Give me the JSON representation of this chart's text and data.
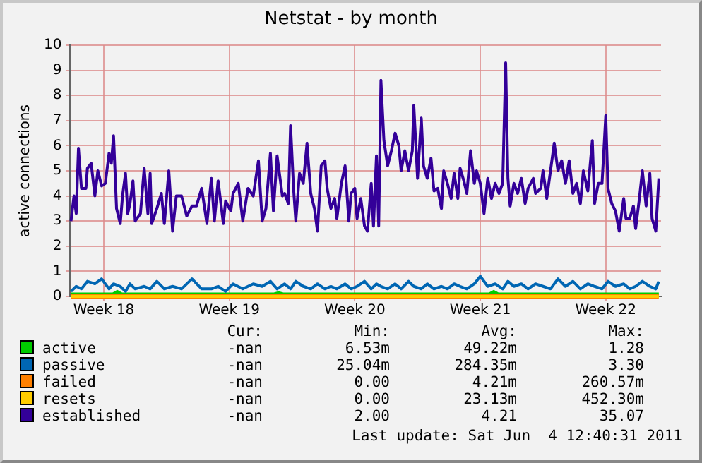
{
  "chart_data": {
    "type": "line",
    "title": "Netstat - by month",
    "ylabel": "active connections",
    "xlim": [
      "2011-05-02T15:00",
      "2011-06-04T14:00"
    ],
    "xticks": [
      {
        "value": "2011-05-04T12:00",
        "label": "Week 18"
      },
      {
        "value": "2011-05-11T12:00",
        "label": "Week 19"
      },
      {
        "value": "2011-05-18T12:00",
        "label": "Week 20"
      },
      {
        "value": "2011-05-25T12:00",
        "label": "Week 21"
      },
      {
        "value": "2011-06-01T12:00",
        "label": "Week 22"
      }
    ],
    "ylim": [
      0,
      10
    ],
    "yticks": [
      0,
      1,
      2,
      3,
      4,
      5,
      6,
      7,
      8,
      9,
      10
    ],
    "grid": true,
    "legend": "bottom",
    "marker": "none",
    "line_style": "solid",
    "series": [
      {
        "name": "active",
        "color": "#00cc00",
        "x": [
          "2011-05-02T16:00",
          "2011-05-05T00:00",
          "2011-05-05T06:00",
          "2011-05-05T12:00",
          "2011-05-14T00:00",
          "2011-05-14T06:00",
          "2011-05-14T12:00",
          "2011-05-26T00:00",
          "2011-05-26T06:00",
          "2011-05-26T12:00",
          "2011-06-04T11:00"
        ],
        "values": [
          0.1,
          0.1,
          0.2,
          0.1,
          0.1,
          0.15,
          0.1,
          0.1,
          0.2,
          0.1,
          0.1
        ]
      },
      {
        "name": "passive",
        "color": "#0066b3",
        "x": [
          "2011-05-02T16:00",
          "2011-05-02T23:00",
          "2011-05-03T06:00",
          "2011-05-03T14:00",
          "2011-05-04T00:00",
          "2011-05-04T09:00",
          "2011-05-04T19:00",
          "2011-05-05T01:00",
          "2011-05-05T10:00",
          "2011-05-05T17:00",
          "2011-05-05T23:00",
          "2011-05-06T06:00",
          "2011-05-06T18:00",
          "2011-05-07T02:00",
          "2011-05-07T11:00",
          "2011-05-07T21:00",
          "2011-05-08T08:00",
          "2011-05-08T20:00",
          "2011-05-09T10:00",
          "2011-05-09T23:00",
          "2011-05-10T12:00",
          "2011-05-10T21:00",
          "2011-05-11T07:00",
          "2011-05-11T17:00",
          "2011-05-12T06:00",
          "2011-05-12T20:00",
          "2011-05-13T08:00",
          "2011-05-13T19:00",
          "2011-05-14T04:00",
          "2011-05-14T14:00",
          "2011-05-14T22:00",
          "2011-05-15T05:00",
          "2011-05-15T15:00",
          "2011-05-16T01:00",
          "2011-05-16T10:00",
          "2011-05-16T20:00",
          "2011-05-17T04:00",
          "2011-05-17T12:00",
          "2011-05-17T23:00",
          "2011-05-18T07:00",
          "2011-05-18T15:00",
          "2011-05-19T01:00",
          "2011-05-19T10:00",
          "2011-05-19T17:00",
          "2011-05-19T23:00",
          "2011-05-20T08:00",
          "2011-05-20T18:00",
          "2011-05-21T02:00",
          "2011-05-21T12:00",
          "2011-05-21T19:00",
          "2011-05-22T05:00",
          "2011-05-22T13:00",
          "2011-05-22T22:00",
          "2011-05-23T08:00",
          "2011-05-23T16:00",
          "2011-05-24T01:00",
          "2011-05-24T09:00",
          "2011-05-24T18:00",
          "2011-05-25T04:00",
          "2011-05-25T12:00",
          "2011-05-25T22:00",
          "2011-05-26T08:00",
          "2011-05-26T18:00",
          "2011-05-27T01:00",
          "2011-05-27T09:00",
          "2011-05-27T19:00",
          "2011-05-28T04:00",
          "2011-05-28T14:00",
          "2011-05-29T00:00",
          "2011-05-29T10:00",
          "2011-05-29T20:00",
          "2011-05-30T06:00",
          "2011-05-30T16:00",
          "2011-05-31T02:00",
          "2011-05-31T12:00",
          "2011-05-31T21:00",
          "2011-06-01T07:00",
          "2011-06-01T15:00",
          "2011-06-02T01:00",
          "2011-06-02T12:00",
          "2011-06-02T20:00",
          "2011-06-03T04:00",
          "2011-06-03T13:00",
          "2011-06-03T23:00",
          "2011-06-04T07:00",
          "2011-06-04T11:00"
        ],
        "values": [
          0.2,
          0.4,
          0.3,
          0.6,
          0.5,
          0.7,
          0.3,
          0.5,
          0.4,
          0.2,
          0.5,
          0.3,
          0.4,
          0.3,
          0.6,
          0.3,
          0.4,
          0.3,
          0.7,
          0.3,
          0.3,
          0.4,
          0.2,
          0.5,
          0.3,
          0.5,
          0.4,
          0.6,
          0.3,
          0.5,
          0.3,
          0.6,
          0.4,
          0.3,
          0.5,
          0.3,
          0.4,
          0.3,
          0.5,
          0.3,
          0.4,
          0.6,
          0.3,
          0.5,
          0.4,
          0.3,
          0.5,
          0.3,
          0.6,
          0.4,
          0.3,
          0.5,
          0.3,
          0.4,
          0.3,
          0.5,
          0.4,
          0.3,
          0.5,
          0.8,
          0.4,
          0.5,
          0.3,
          0.6,
          0.4,
          0.5,
          0.3,
          0.5,
          0.4,
          0.3,
          0.7,
          0.4,
          0.6,
          0.3,
          0.5,
          0.4,
          0.3,
          0.6,
          0.4,
          0.5,
          0.3,
          0.4,
          0.6,
          0.4,
          0.3,
          0.6
        ]
      },
      {
        "name": "failed",
        "color": "#ff8000",
        "x": [
          "2011-05-02T16:00",
          "2011-06-04T11:00"
        ],
        "values": [
          0,
          0
        ]
      },
      {
        "name": "resets",
        "color": "#ffcc00",
        "x": [
          "2011-05-02T16:00",
          "2011-06-04T11:00"
        ],
        "values": [
          0,
          0
        ]
      },
      {
        "name": "established",
        "color": "#330099",
        "x": [
          "2011-05-02T16:00",
          "2011-05-02T20:00",
          "2011-05-02T23:00",
          "2011-05-03T02:00",
          "2011-05-03T06:00",
          "2011-05-03T12:00",
          "2011-05-03T14:00",
          "2011-05-03T19:00",
          "2011-05-04T00:00",
          "2011-05-04T04:00",
          "2011-05-04T09:00",
          "2011-05-04T14:00",
          "2011-05-04T19:00",
          "2011-05-04T22:00",
          "2011-05-05T01:00",
          "2011-05-05T05:00",
          "2011-05-05T10:00",
          "2011-05-05T13:00",
          "2011-05-05T17:00",
          "2011-05-05T20:00",
          "2011-05-05T23:00",
          "2011-05-06T03:00",
          "2011-05-06T06:00",
          "2011-05-06T13:00",
          "2011-05-06T18:00",
          "2011-05-06T23:00",
          "2011-05-07T02:00",
          "2011-05-07T04:00",
          "2011-05-07T11:00",
          "2011-05-07T17:00",
          "2011-05-07T21:00",
          "2011-05-08T03:00",
          "2011-05-08T08:00",
          "2011-05-08T13:00",
          "2011-05-08T20:00",
          "2011-05-09T03:00",
          "2011-05-09T10:00",
          "2011-05-09T16:00",
          "2011-05-09T23:00",
          "2011-05-10T06:00",
          "2011-05-10T12:00",
          "2011-05-10T16:00",
          "2011-05-10T21:00",
          "2011-05-11T04:00",
          "2011-05-11T07:00",
          "2011-05-11T14:00",
          "2011-05-11T17:00",
          "2011-05-12T00:00",
          "2011-05-12T06:00",
          "2011-05-12T13:00",
          "2011-05-12T20:00",
          "2011-05-13T03:00",
          "2011-05-13T08:00",
          "2011-05-13T13:00",
          "2011-05-13T19:00",
          "2011-05-13T23:00",
          "2011-05-14T04:00",
          "2011-05-14T11:00",
          "2011-05-14T14:00",
          "2011-05-14T19:00",
          "2011-05-14T22:00",
          "2011-05-15T02:00",
          "2011-05-15T05:00",
          "2011-05-15T10:00",
          "2011-05-15T15:00",
          "2011-05-15T20:00",
          "2011-05-16T01:00",
          "2011-05-16T06:00",
          "2011-05-16T10:00",
          "2011-05-16T15:00",
          "2011-05-16T20:00",
          "2011-05-16T23:00",
          "2011-05-17T04:00",
          "2011-05-17T09:00",
          "2011-05-17T12:00",
          "2011-05-17T18:00",
          "2011-05-17T23:00",
          "2011-05-18T04:00",
          "2011-05-18T07:00",
          "2011-05-18T12:00",
          "2011-05-18T15:00",
          "2011-05-18T20:00",
          "2011-05-19T01:00",
          "2011-05-19T05:00",
          "2011-05-19T10:00",
          "2011-05-19T13:00",
          "2011-05-19T17:00",
          "2011-05-19T20:00",
          "2011-05-19T23:00",
          "2011-05-20T03:00",
          "2011-05-20T08:00",
          "2011-05-20T13:00",
          "2011-05-20T18:00",
          "2011-05-20T23:00",
          "2011-05-21T02:00",
          "2011-05-21T07:00",
          "2011-05-21T12:00",
          "2011-05-21T17:00",
          "2011-05-21T19:00",
          "2011-05-22T00:00",
          "2011-05-22T05:00",
          "2011-05-22T08:00",
          "2011-05-22T13:00",
          "2011-05-22T18:00",
          "2011-05-22T22:00",
          "2011-05-23T03:00",
          "2011-05-23T08:00",
          "2011-05-23T11:00",
          "2011-05-23T16:00",
          "2011-05-23T21:00",
          "2011-05-24T01:00",
          "2011-05-24T06:00",
          "2011-05-24T09:00",
          "2011-05-24T14:00",
          "2011-05-24T18:00",
          "2011-05-24T23:00",
          "2011-05-25T04:00",
          "2011-05-25T07:00",
          "2011-05-25T12:00",
          "2011-05-25T17:00",
          "2011-05-25T22:00",
          "2011-05-26T03:00",
          "2011-05-26T08:00",
          "2011-05-26T13:00",
          "2011-05-26T18:00",
          "2011-05-26T22:00",
          "2011-05-27T01:00",
          "2011-05-27T04:00",
          "2011-05-27T09:00",
          "2011-05-27T14:00",
          "2011-05-27T19:00",
          "2011-05-28T00:00",
          "2011-05-28T04:00",
          "2011-05-28T11:00",
          "2011-05-28T14:00",
          "2011-05-28T21:00",
          "2011-05-29T00:00",
          "2011-05-29T05:00",
          "2011-05-29T10:00",
          "2011-05-29T15:00",
          "2011-05-29T20:00",
          "2011-05-30T01:00",
          "2011-05-30T06:00",
          "2011-05-30T11:00",
          "2011-05-30T16:00",
          "2011-05-30T21:00",
          "2011-05-31T02:00",
          "2011-05-31T06:00",
          "2011-05-31T12:00",
          "2011-05-31T18:00",
          "2011-05-31T21:00",
          "2011-06-01T02:00",
          "2011-06-01T07:00",
          "2011-06-01T12:00",
          "2011-06-01T15:00",
          "2011-06-01T20:00",
          "2011-06-02T01:00",
          "2011-06-02T06:00",
          "2011-06-02T12:00",
          "2011-06-02T15:00",
          "2011-06-02T20:00",
          "2011-06-03T01:00",
          "2011-06-03T04:00",
          "2011-06-03T09:00",
          "2011-06-03T13:00",
          "2011-06-03T18:00",
          "2011-06-03T23:00",
          "2011-06-04T02:00",
          "2011-06-04T07:00",
          "2011-06-04T11:00"
        ],
        "values": [
          3.0,
          4.0,
          3.3,
          5.9,
          4.3,
          4.3,
          5.1,
          5.3,
          4.0,
          5.0,
          4.4,
          4.5,
          5.7,
          5.3,
          6.4,
          3.5,
          2.9,
          4.0,
          4.9,
          3.3,
          3.7,
          4.6,
          3.0,
          3.3,
          5.1,
          3.3,
          4.9,
          2.9,
          3.5,
          4.1,
          2.9,
          5.0,
          2.6,
          4.0,
          4.0,
          3.2,
          3.6,
          3.6,
          4.3,
          2.9,
          4.7,
          3.0,
          4.6,
          2.9,
          3.8,
          3.4,
          4.1,
          4.5,
          3.0,
          4.3,
          4.0,
          5.4,
          3.0,
          3.5,
          5.7,
          3.4,
          5.6,
          4.0,
          4.1,
          3.7,
          6.8,
          4.3,
          3.0,
          4.9,
          4.5,
          6.1,
          4.1,
          3.5,
          2.6,
          5.2,
          5.4,
          4.3,
          3.5,
          3.9,
          3.1,
          4.5,
          5.2,
          3.0,
          4.1,
          4.3,
          3.1,
          3.9,
          2.8,
          2.6,
          4.5,
          2.8,
          5.6,
          2.8,
          8.6,
          6.2,
          5.2,
          5.8,
          6.5,
          6.0,
          5.0,
          5.8,
          5.0,
          5.8,
          7.6,
          4.7,
          7.1,
          5.2,
          4.7,
          5.5,
          4.2,
          4.3,
          3.5,
          5.0,
          4.5,
          3.9,
          4.9,
          3.9,
          5.1,
          4.6,
          4.1,
          5.8,
          4.5,
          5.0,
          4.5,
          3.3,
          4.7,
          3.9,
          4.5,
          4.1,
          4.5,
          9.3,
          4.7,
          3.6,
          4.5,
          4.1,
          4.7,
          3.7,
          4.3,
          4.7,
          4.1,
          4.3,
          5.0,
          3.9,
          5.0,
          6.1,
          5.0,
          5.4,
          4.5,
          5.4,
          4.1,
          4.5,
          3.7,
          5.0,
          4.2,
          6.2,
          3.7,
          4.5,
          4.5,
          7.2,
          4.3,
          3.7,
          3.4,
          2.6,
          3.9,
          3.1,
          3.1,
          3.6,
          2.7,
          3.9,
          5.0,
          3.6,
          4.9,
          3.1,
          2.6,
          4.7
        ]
      }
    ],
    "annotations": [
      "Cur:",
      "Min:",
      "Avg:",
      "Max:",
      "-nan",
      "6.53m",
      "49.22m",
      "1.28",
      "-nan",
      "25.04m",
      "284.35m",
      "3.30",
      "-nan",
      "0.00",
      "4.21m",
      "260.57m",
      "-nan",
      "0.00",
      "23.13m",
      "452.30m",
      "-nan",
      "2.00",
      "4.21",
      "35.07",
      "Last update: Sat Jun  4 12:40:31 2011"
    ]
  }
}
